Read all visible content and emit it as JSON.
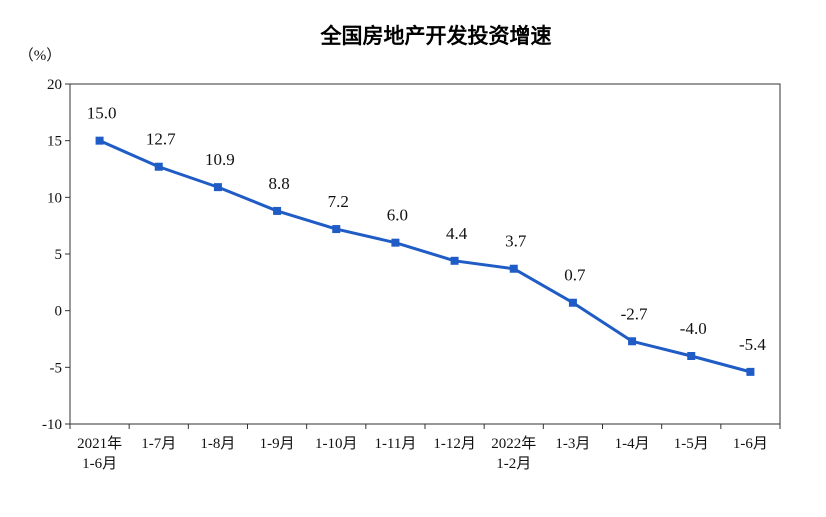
{
  "chart_data": {
    "type": "line",
    "title": "全国房地产开发投资增速",
    "ylabel": "（%）",
    "ylim": [
      -10,
      20
    ],
    "yticks": [
      20,
      15,
      10,
      5,
      0,
      -5,
      -10
    ],
    "grid": false,
    "categories": [
      [
        "2021年",
        "1-6月"
      ],
      [
        "1-7月"
      ],
      [
        "1-8月"
      ],
      [
        "1-9月"
      ],
      [
        "1-10月"
      ],
      [
        "1-11月"
      ],
      [
        "1-12月"
      ],
      [
        "2022年",
        "1-2月"
      ],
      [
        "1-3月"
      ],
      [
        "1-4月"
      ],
      [
        "1-5月"
      ],
      [
        "1-6月"
      ]
    ],
    "series": [
      {
        "values": [
          15.0,
          12.7,
          10.9,
          8.8,
          7.2,
          6.0,
          4.4,
          3.7,
          0.7,
          -2.7,
          -4.0,
          -5.4
        ],
        "labels": [
          "15.0",
          "12.7",
          "10.9",
          "8.8",
          "7.2",
          "6.0",
          "4.4",
          "3.7",
          "0.7",
          "-2.7",
          "-4.0",
          "-5.4"
        ],
        "color": "#1f5cc5"
      }
    ]
  }
}
